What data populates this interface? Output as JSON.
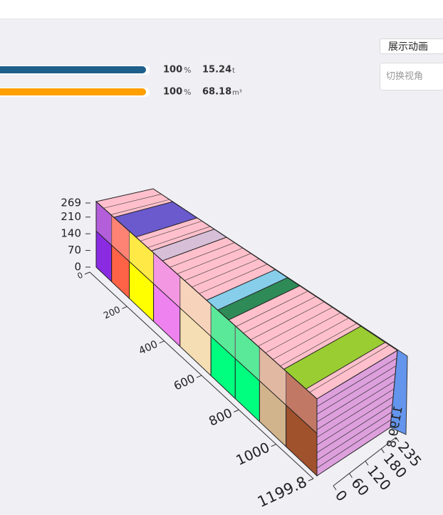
{
  "progress": [
    {
      "percent": 100,
      "percent_unit": "%",
      "value": 15.24,
      "unit": "t"
    },
    {
      "percent": 100,
      "percent_unit": "%",
      "value": 68.18,
      "unit": "m³"
    }
  ],
  "controls": {
    "animate_button": "展示动画",
    "view_select_placeholder": "切换视角"
  },
  "axes": {
    "height_ticks": [
      0,
      70,
      140,
      210,
      269
    ],
    "length_ticks": [
      0,
      200,
      400,
      600,
      800,
      1000,
      1199.8
    ],
    "width_ticks": [
      0,
      60,
      120,
      180,
      235
    ],
    "side_length_label": 1199.8
  }
}
